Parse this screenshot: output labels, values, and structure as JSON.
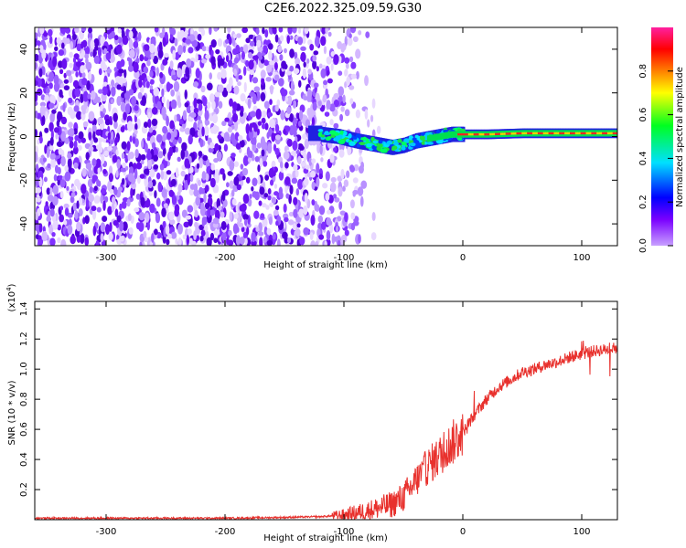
{
  "title": "C2E6.2022.325.09.59.G30",
  "colors": {
    "snr_line": "#e8302c",
    "colorbar_stops": [
      "#c8a0ff",
      "#7a00ff",
      "#0000ff",
      "#00e0ff",
      "#00ff20",
      "#ffff00",
      "#ff8000",
      "#ff0000",
      "#ff20a0"
    ]
  },
  "chart_data": [
    {
      "type": "heatmap",
      "xlabel": "Height of straight line (km)",
      "ylabel": "Frequency (Hz)",
      "xlim": [
        -360,
        130
      ],
      "ylim": [
        -50,
        50
      ],
      "xticks": [
        -300,
        -200,
        -100,
        0,
        100
      ],
      "yticks": [
        -40,
        -20,
        0,
        20,
        40
      ],
      "colorbar": {
        "label": "Normalized spectral amplitude",
        "range": [
          0,
          1
        ],
        "ticks": [
          "0.0",
          "0.2",
          "0.4",
          "0.6",
          "0.8"
        ]
      },
      "ridge": {
        "x": [
          -120,
          -105,
          -90,
          -80,
          -70,
          -60,
          -50,
          -40,
          -30,
          -20,
          -10,
          0,
          20,
          50,
          80,
          110,
          130
        ],
        "hz": [
          1,
          0,
          -2,
          -3,
          -4,
          -5,
          -4,
          -2,
          -1,
          0,
          1,
          1,
          1,
          1.5,
          1.5,
          1.5,
          1.5
        ]
      }
    },
    {
      "type": "line",
      "xlabel": "Height of straight line (km)",
      "ylabel": "SNR (10 * v/v)",
      "yscale_label": "(x10",
      "yscale_exp": "4",
      "yscale_close": ")",
      "xlim": [
        -360,
        130
      ],
      "ylim": [
        0,
        1.45
      ],
      "xticks": [
        -300,
        -200,
        -100,
        0,
        100
      ],
      "yticks": [
        "0.2",
        "0.4",
        "0.6",
        "0.8",
        "1.0",
        "1.2",
        "1.4"
      ],
      "series": [
        {
          "x": [
            -360,
            -300,
            -200,
            -150,
            -120,
            -100,
            -80,
            -60,
            -50,
            -40,
            -30,
            -20,
            -10,
            0,
            10,
            20,
            30,
            40,
            50,
            60,
            70,
            80,
            90,
            100,
            110,
            120,
            130
          ],
          "y": [
            0.01,
            0.01,
            0.01,
            0.015,
            0.02,
            0.03,
            0.06,
            0.1,
            0.15,
            0.25,
            0.35,
            0.42,
            0.5,
            0.58,
            0.7,
            0.8,
            0.88,
            0.93,
            0.98,
            1.0,
            1.03,
            1.05,
            1.08,
            1.1,
            1.12,
            1.13,
            1.14
          ]
        }
      ]
    }
  ]
}
